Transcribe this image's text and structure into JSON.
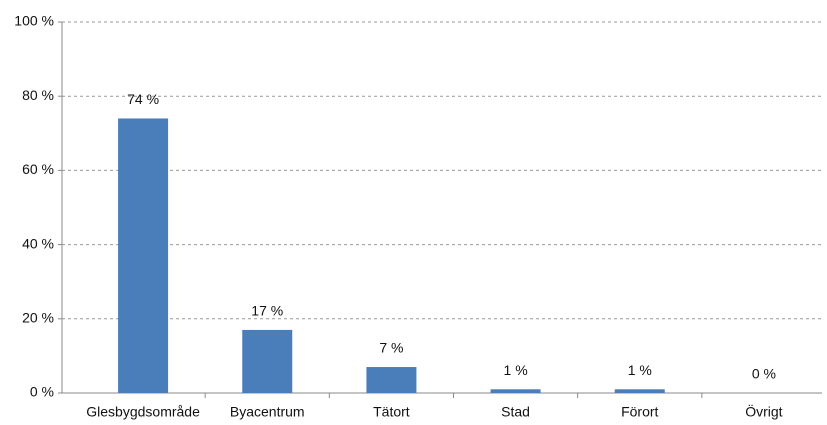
{
  "chart_data": {
    "type": "bar",
    "categories": [
      "Glesbygdsområde",
      "Byacentrum",
      "Tätort",
      "Stad",
      "Förort",
      "Övrigt"
    ],
    "values": [
      74,
      17,
      7,
      1,
      1,
      0
    ],
    "value_labels": [
      "74 %",
      "17 %",
      "7 %",
      "1 %",
      "1 %",
      "0 %"
    ],
    "color": "#4a7ebb",
    "ylim": [
      0,
      100
    ],
    "yticks": [
      {
        "value": 0,
        "label": "0 %"
      },
      {
        "value": 20,
        "label": "20 %"
      },
      {
        "value": 40,
        "label": "40 %"
      },
      {
        "value": 60,
        "label": "60 %"
      },
      {
        "value": 80,
        "label": "80 %"
      },
      {
        "value": 100,
        "label": "100 %"
      }
    ],
    "grid": true
  }
}
